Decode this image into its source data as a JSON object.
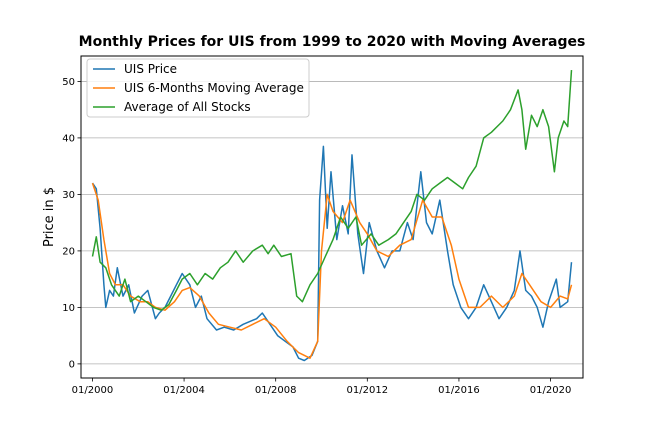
{
  "chart_data": {
    "type": "line",
    "title": "Monthly Prices for UIS from 1999 to 2020 with Moving Averages",
    "xlabel": "",
    "ylabel": "Price in $",
    "xlim": [
      "1999-07",
      "2021-06"
    ],
    "ylim": [
      -2.5,
      54.5
    ],
    "grid": "horizontal",
    "legend_position": "upper-left",
    "x_ticks": [
      "01/2000",
      "01/2004",
      "01/2008",
      "01/2012",
      "01/2016",
      "01/2020"
    ],
    "y_ticks": [
      0,
      10,
      20,
      30,
      40,
      50
    ],
    "series": [
      {
        "name": "UIS Price",
        "color": "#1f77b4",
        "points": [
          [
            "2000-01",
            32
          ],
          [
            "2000-03",
            31
          ],
          [
            "2000-05",
            24
          ],
          [
            "2000-07",
            14
          ],
          [
            "2000-08",
            10
          ],
          [
            "2000-10",
            13
          ],
          [
            "2000-12",
            12
          ],
          [
            "2001-02",
            17
          ],
          [
            "2001-05",
            12
          ],
          [
            "2001-08",
            14
          ],
          [
            "2001-11",
            9
          ],
          [
            "2002-03",
            12
          ],
          [
            "2002-06",
            13
          ],
          [
            "2002-10",
            8
          ],
          [
            "2002-12",
            9
          ],
          [
            "2003-03",
            10
          ],
          [
            "2003-06",
            12
          ],
          [
            "2003-09",
            14
          ],
          [
            "2003-12",
            16
          ],
          [
            "2004-04",
            14
          ],
          [
            "2004-07",
            10
          ],
          [
            "2004-10",
            12
          ],
          [
            "2005-01",
            8
          ],
          [
            "2005-06",
            6
          ],
          [
            "2005-10",
            6.5
          ],
          [
            "2006-03",
            6
          ],
          [
            "2006-08",
            7
          ],
          [
            "2007-03",
            8
          ],
          [
            "2007-06",
            9
          ],
          [
            "2007-10",
            7
          ],
          [
            "2008-02",
            5
          ],
          [
            "2008-06",
            4
          ],
          [
            "2008-10",
            3
          ],
          [
            "2009-01",
            1
          ],
          [
            "2009-04",
            0.6
          ],
          [
            "2009-08",
            1.5
          ],
          [
            "2009-11",
            4
          ],
          [
            "2009-12",
            29
          ],
          [
            "2010-02",
            38.5
          ],
          [
            "2010-04",
            24
          ],
          [
            "2010-06",
            34
          ],
          [
            "2010-09",
            22
          ],
          [
            "2010-12",
            28
          ],
          [
            "2011-03",
            23
          ],
          [
            "2011-05",
            37
          ],
          [
            "2011-08",
            23
          ],
          [
            "2011-11",
            16
          ],
          [
            "2012-02",
            25
          ],
          [
            "2012-06",
            20
          ],
          [
            "2012-10",
            17
          ],
          [
            "2013-02",
            20
          ],
          [
            "2013-06",
            20
          ],
          [
            "2013-10",
            25
          ],
          [
            "2014-01",
            22
          ],
          [
            "2014-05",
            34
          ],
          [
            "2014-08",
            25
          ],
          [
            "2014-11",
            23
          ],
          [
            "2015-03",
            29
          ],
          [
            "2015-07",
            20
          ],
          [
            "2015-10",
            14
          ],
          [
            "2016-02",
            10
          ],
          [
            "2016-06",
            8
          ],
          [
            "2016-10",
            10
          ],
          [
            "2017-02",
            14
          ],
          [
            "2017-06",
            11
          ],
          [
            "2017-10",
            8
          ],
          [
            "2018-02",
            10
          ],
          [
            "2018-06",
            13
          ],
          [
            "2018-09",
            20
          ],
          [
            "2018-12",
            13
          ],
          [
            "2019-03",
            12
          ],
          [
            "2019-06",
            10
          ],
          [
            "2019-09",
            6.5
          ],
          [
            "2019-12",
            11
          ],
          [
            "2020-04",
            15
          ],
          [
            "2020-06",
            10
          ],
          [
            "2020-10",
            11
          ],
          [
            "2020-12",
            18
          ]
        ]
      },
      {
        "name": "UIS 6-Months Moving Average",
        "color": "#ff7f0e",
        "points": [
          [
            "2000-01",
            32
          ],
          [
            "2000-04",
            29
          ],
          [
            "2000-07",
            22
          ],
          [
            "2000-10",
            16
          ],
          [
            "2001-01",
            14
          ],
          [
            "2001-05",
            14
          ],
          [
            "2001-09",
            12
          ],
          [
            "2002-02",
            11
          ],
          [
            "2002-06",
            11
          ],
          [
            "2002-10",
            10
          ],
          [
            "2003-03",
            9.5
          ],
          [
            "2003-08",
            11
          ],
          [
            "2003-12",
            13
          ],
          [
            "2004-04",
            13.5
          ],
          [
            "2004-09",
            12
          ],
          [
            "2005-02",
            9
          ],
          [
            "2005-07",
            7
          ],
          [
            "2006-01",
            6.5
          ],
          [
            "2006-07",
            6
          ],
          [
            "2007-01",
            7
          ],
          [
            "2007-07",
            8
          ],
          [
            "2008-01",
            6.5
          ],
          [
            "2008-07",
            4
          ],
          [
            "2009-01",
            2
          ],
          [
            "2009-07",
            1
          ],
          [
            "2009-11",
            4
          ],
          [
            "2010-01",
            20
          ],
          [
            "2010-04",
            30
          ],
          [
            "2010-07",
            27
          ],
          [
            "2010-12",
            25
          ],
          [
            "2011-04",
            29
          ],
          [
            "2011-09",
            25
          ],
          [
            "2012-01",
            23
          ],
          [
            "2012-06",
            20
          ],
          [
            "2012-12",
            19
          ],
          [
            "2013-06",
            21
          ],
          [
            "2013-12",
            22
          ],
          [
            "2014-06",
            29
          ],
          [
            "2014-11",
            26
          ],
          [
            "2015-04",
            26
          ],
          [
            "2015-09",
            21
          ],
          [
            "2016-01",
            15
          ],
          [
            "2016-06",
            10
          ],
          [
            "2016-12",
            10
          ],
          [
            "2017-06",
            12
          ],
          [
            "2017-12",
            10
          ],
          [
            "2018-06",
            12
          ],
          [
            "2018-10",
            16
          ],
          [
            "2019-02",
            14
          ],
          [
            "2019-08",
            11
          ],
          [
            "2020-01",
            10
          ],
          [
            "2020-06",
            12
          ],
          [
            "2020-10",
            11.5
          ],
          [
            "2020-12",
            14
          ]
        ]
      },
      {
        "name": "Average of All Stocks",
        "color": "#2ca02c",
        "points": [
          [
            "2000-01",
            19
          ],
          [
            "2000-03",
            22.5
          ],
          [
            "2000-05",
            18
          ],
          [
            "2000-08",
            17
          ],
          [
            "2000-11",
            14
          ],
          [
            "2001-03",
            12
          ],
          [
            "2001-06",
            15
          ],
          [
            "2001-09",
            11
          ],
          [
            "2002-01",
            12
          ],
          [
            "2002-05",
            11
          ],
          [
            "2002-09",
            10
          ],
          [
            "2003-01",
            9.5
          ],
          [
            "2003-05",
            10.5
          ],
          [
            "2003-09",
            13
          ],
          [
            "2003-12",
            15
          ],
          [
            "2004-04",
            16
          ],
          [
            "2004-08",
            14
          ],
          [
            "2004-12",
            16
          ],
          [
            "2005-04",
            15
          ],
          [
            "2005-08",
            17
          ],
          [
            "2005-12",
            18
          ],
          [
            "2006-04",
            20
          ],
          [
            "2006-08",
            18
          ],
          [
            "2007-01",
            20
          ],
          [
            "2007-06",
            21
          ],
          [
            "2007-09",
            19.5
          ],
          [
            "2007-12",
            21
          ],
          [
            "2008-04",
            19
          ],
          [
            "2008-09",
            19.5
          ],
          [
            "2008-12",
            12
          ],
          [
            "2009-03",
            11
          ],
          [
            "2009-07",
            14
          ],
          [
            "2009-11",
            16
          ],
          [
            "2010-03",
            19
          ],
          [
            "2010-07",
            22
          ],
          [
            "2010-11",
            26
          ],
          [
            "2011-03",
            24
          ],
          [
            "2011-07",
            26
          ],
          [
            "2011-10",
            21
          ],
          [
            "2012-03",
            23
          ],
          [
            "2012-07",
            21
          ],
          [
            "2012-12",
            22
          ],
          [
            "2013-04",
            23
          ],
          [
            "2013-08",
            25
          ],
          [
            "2013-12",
            27
          ],
          [
            "2014-03",
            30
          ],
          [
            "2014-07",
            29
          ],
          [
            "2014-11",
            31
          ],
          [
            "2015-03",
            32
          ],
          [
            "2015-07",
            33
          ],
          [
            "2015-11",
            32
          ],
          [
            "2016-03",
            31
          ],
          [
            "2016-06",
            33
          ],
          [
            "2016-10",
            35
          ],
          [
            "2017-02",
            40
          ],
          [
            "2017-06",
            41
          ],
          [
            "2017-09",
            42
          ],
          [
            "2017-12",
            43
          ],
          [
            "2018-04",
            45
          ],
          [
            "2018-08",
            48.5
          ],
          [
            "2018-10",
            45
          ],
          [
            "2018-12",
            38
          ],
          [
            "2019-03",
            44
          ],
          [
            "2019-06",
            42
          ],
          [
            "2019-09",
            45
          ],
          [
            "2019-12",
            42
          ],
          [
            "2020-03",
            34
          ],
          [
            "2020-05",
            40
          ],
          [
            "2020-08",
            43
          ],
          [
            "2020-10",
            42
          ],
          [
            "2020-12",
            52
          ]
        ]
      }
    ]
  }
}
